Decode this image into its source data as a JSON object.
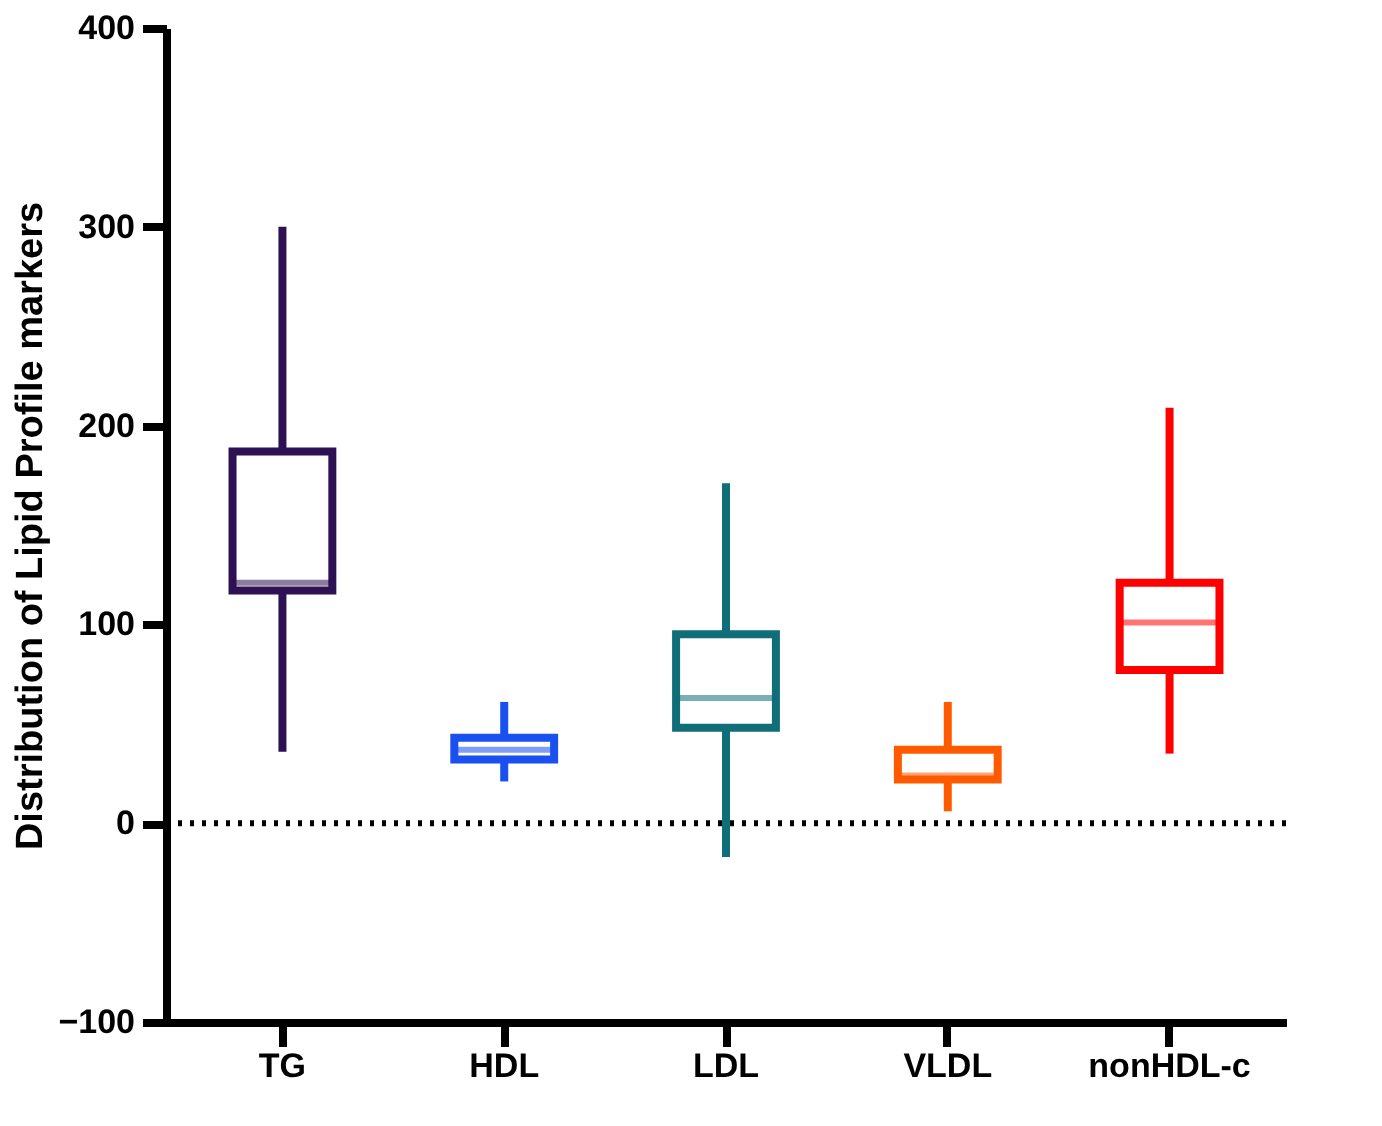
{
  "chart_data": {
    "type": "box",
    "ylabel": "Distribution of Lipid Profile markers",
    "categories": [
      "TG",
      "HDL",
      "LDL",
      "VLDL",
      "nonHDL-c"
    ],
    "boxes": [
      {
        "low": 36,
        "q1": 117,
        "median": 121,
        "q3": 187,
        "high": 300
      },
      {
        "low": 21,
        "q1": 32,
        "median": 37,
        "q3": 43,
        "high": 61
      },
      {
        "low": -17,
        "q1": 48,
        "median": 63,
        "q3": 95,
        "high": 171
      },
      {
        "low": 6,
        "q1": 22,
        "median": 24,
        "q3": 37,
        "high": 61
      },
      {
        "low": 35,
        "q1": 77,
        "median": 101,
        "q3": 121,
        "high": 209
      }
    ],
    "colors": [
      "#2d1152",
      "#1a4ff0",
      "#0f6e78",
      "#ff5a00",
      "#ff0000"
    ],
    "ylim": [
      -100,
      400
    ],
    "yticks": [
      -100,
      0,
      100,
      200,
      300,
      400
    ],
    "ref_lines": [
      {
        "axis": "y",
        "value": 0,
        "color": "#000000",
        "line_style": "dotted"
      }
    ],
    "grid": false
  }
}
